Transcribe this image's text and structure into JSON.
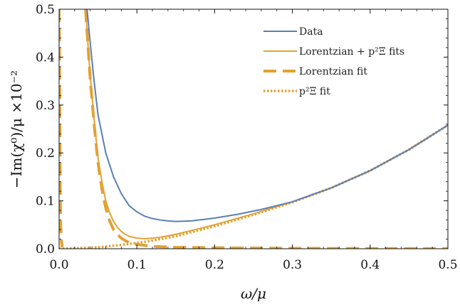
{
  "chart_data": {
    "type": "line",
    "xlabel": "ω/μ",
    "ylabel": "−Im(χ⁰)/μ ×10⁻²",
    "xlim": [
      0.0,
      0.5
    ],
    "ylim": [
      0.0,
      0.5
    ],
    "xticks": [
      "0.0",
      "0.1",
      "0.2",
      "0.3",
      "0.4",
      "0.5"
    ],
    "yticks": [
      "0.0",
      "0.1",
      "0.2",
      "0.3",
      "0.4",
      "0.5"
    ],
    "grid": false,
    "legend_position": "top-right",
    "series": [
      {
        "name": "Data",
        "color": "#5b7fb4",
        "style": "solid",
        "x": [
          0.036,
          0.04,
          0.045,
          0.05,
          0.06,
          0.07,
          0.08,
          0.09,
          0.1,
          0.11,
          0.12,
          0.13,
          0.14,
          0.15,
          0.17,
          0.2,
          0.23,
          0.26,
          0.3,
          0.35,
          0.4,
          0.45,
          0.5
        ],
        "y": [
          0.5,
          0.43,
          0.35,
          0.28,
          0.2,
          0.15,
          0.115,
          0.09,
          0.077,
          0.068,
          0.063,
          0.06,
          0.058,
          0.057,
          0.058,
          0.064,
          0.072,
          0.082,
          0.098,
          0.127,
          0.163,
          0.207,
          0.258
        ]
      },
      {
        "name": "Lorentzian + p²Ξ fits",
        "color": "#e3a132",
        "style": "solid",
        "x": [
          0.034,
          0.04,
          0.045,
          0.05,
          0.055,
          0.06,
          0.065,
          0.07,
          0.075,
          0.08,
          0.085,
          0.09,
          0.1,
          0.11,
          0.12,
          0.13,
          0.15,
          0.2,
          0.25,
          0.3,
          0.35,
          0.4,
          0.45,
          0.5
        ],
        "y": [
          0.5,
          0.36,
          0.27,
          0.19,
          0.14,
          0.1,
          0.075,
          0.057,
          0.045,
          0.036,
          0.03,
          0.026,
          0.022,
          0.021,
          0.022,
          0.024,
          0.03,
          0.05,
          0.073,
          0.098,
          0.127,
          0.163,
          0.207,
          0.258
        ]
      },
      {
        "name": "Lorentzian fit",
        "color": "#e3a132",
        "style": "dashed",
        "x": [
          0.034,
          0.04,
          0.045,
          0.05,
          0.055,
          0.06,
          0.065,
          0.07,
          0.075,
          0.08,
          0.085,
          0.09,
          0.1,
          0.12,
          0.15,
          0.2,
          0.3,
          0.4,
          0.5
        ],
        "y": [
          0.5,
          0.355,
          0.26,
          0.18,
          0.125,
          0.085,
          0.058,
          0.04,
          0.03,
          0.022,
          0.017,
          0.013,
          0.009,
          0.005,
          0.003,
          0.002,
          0.0008,
          0.0004,
          0.0002
        ]
      },
      {
        "name": "p²Ξ fit",
        "color": "#e3a132",
        "style": "dotted",
        "x": [
          0.0,
          0.05,
          0.08,
          0.1,
          0.12,
          0.15,
          0.2,
          0.25,
          0.3,
          0.35,
          0.4,
          0.45,
          0.5
        ],
        "y": [
          0.0,
          0.003,
          0.008,
          0.012,
          0.017,
          0.026,
          0.047,
          0.071,
          0.097,
          0.127,
          0.163,
          0.207,
          0.258
        ]
      }
    ],
    "left_spike": {
      "color": "#e3a132",
      "x": [
        0.0,
        0.0005,
        0.001,
        0.0015,
        0.002,
        0.003,
        0.004
      ],
      "y": [
        0.5,
        0.4,
        0.25,
        0.12,
        0.05,
        0.015,
        0.003
      ]
    }
  }
}
